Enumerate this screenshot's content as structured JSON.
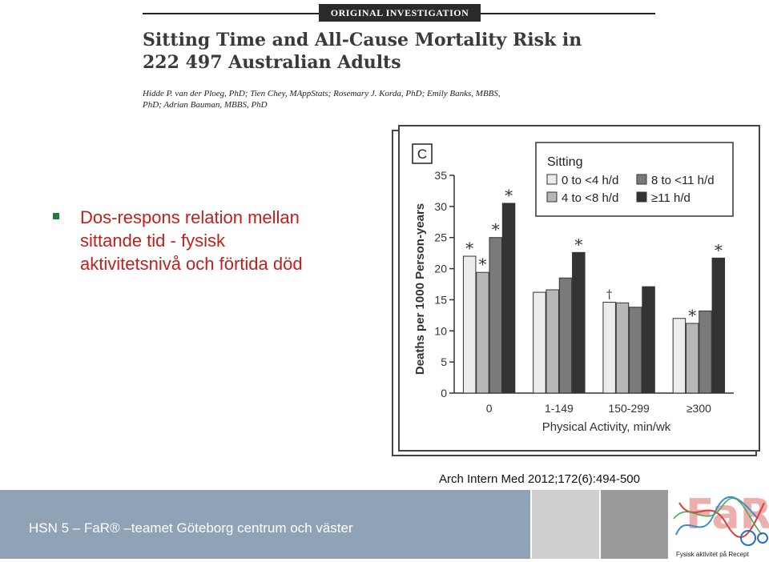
{
  "header": {
    "badge": "ORIGINAL INVESTIGATION",
    "title": "Sitting Time and All-Cause Mortality Risk in 222 497 Australian Adults",
    "authors": "Hidde P. van der Ploeg, PhD; Tien Chey, MAppStats; Rosemary J. Korda, PhD; Emily Banks, MBBS, PhD; Adrian Bauman, MBBS, PhD"
  },
  "bullet": {
    "text": "Dos-respons relation mellan sittande tid - fysisk aktivitetsnivå och förtida död"
  },
  "citation": "Arch Intern Med 2012;172(6):494-500",
  "footer": {
    "text": "HSN 5 – FaR® –teamet Göteborg centrum och väster",
    "logo_caption": "Fysisk aktivitet på Recept"
  },
  "colors": {
    "bullet_text": "#c0201c",
    "bullet_marker": "#1e7d3a",
    "footer_bar": "#8fa2b6"
  },
  "chart_data": {
    "type": "bar",
    "panel_label": "C",
    "legend_title": "Sitting",
    "legend_placement": "top-right",
    "xlabel": "Physical Activity, min/wk",
    "ylabel": "Deaths per 1000 Person-years",
    "ylim": [
      0,
      35
    ],
    "yticks": [
      0,
      5,
      10,
      15,
      20,
      25,
      30,
      35
    ],
    "grid": false,
    "categories": [
      "0",
      "1-149",
      "150-299",
      "≥300"
    ],
    "series": [
      {
        "name": "0 to <4 h/d",
        "color": "#ececec",
        "values": [
          22.0,
          16.2,
          14.6,
          12.0
        ],
        "markers": [
          "*",
          "",
          "†",
          ""
        ]
      },
      {
        "name": "4 to <8 h/d",
        "color": "#b7b7b7",
        "values": [
          19.4,
          16.6,
          14.5,
          11.2
        ],
        "markers": [
          "*",
          "",
          "",
          "*"
        ]
      },
      {
        "name": "8 to <11 h/d",
        "color": "#7a7a7a",
        "values": [
          25.0,
          18.5,
          13.8,
          13.2
        ],
        "markers": [
          "*",
          "",
          "",
          ""
        ]
      },
      {
        "name": "≥11 h/d",
        "color": "#333333",
        "values": [
          30.5,
          22.6,
          17.1,
          21.7
        ],
        "markers": [
          "*",
          "*",
          "",
          "*"
        ]
      }
    ]
  }
}
